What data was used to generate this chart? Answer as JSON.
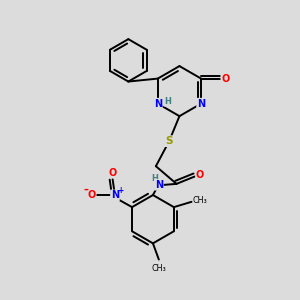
{
  "bg_color": "#dcdcdc",
  "bond_color": "#000000",
  "atom_colors": {
    "N": "#0000ff",
    "O": "#ff0000",
    "S": "#999900",
    "H": "#408080",
    "C": "#000000"
  },
  "lw": 1.4
}
